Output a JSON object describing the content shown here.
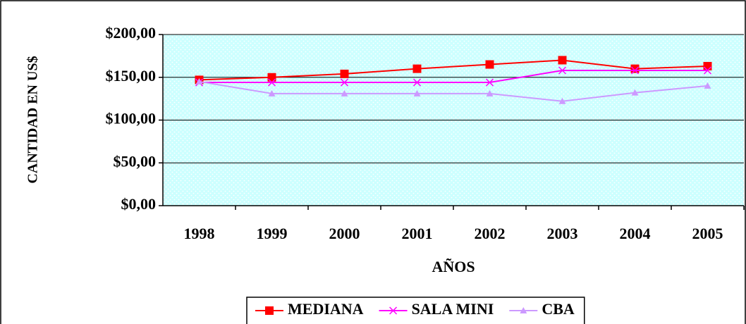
{
  "chart_data": {
    "type": "line",
    "x_label": "AÑOS",
    "y_label": "CANTIDAD EN US$",
    "categories": [
      "1998",
      "1999",
      "2000",
      "2001",
      "2002",
      "2003",
      "2004",
      "2005"
    ],
    "series": [
      {
        "name": "MEDIANA",
        "color": "#ff0000",
        "marker": "square",
        "values": [
          147,
          150,
          154,
          160,
          165,
          170,
          160,
          163
        ]
      },
      {
        "name": "SALA MINI",
        "color": "#ff00ff",
        "marker": "x",
        "values": [
          144,
          144,
          144,
          144,
          144,
          158,
          158,
          158
        ]
      },
      {
        "name": "CBA",
        "color": "#cc99ff",
        "marker": "triangle",
        "values": [
          145,
          131,
          131,
          131,
          131,
          122,
          132,
          140
        ]
      }
    ],
    "ylim": [
      0,
      200
    ],
    "yticks": [
      {
        "value": 0,
        "label": "$0,00"
      },
      {
        "value": 50,
        "label": "$50,00"
      },
      {
        "value": 100,
        "label": "$100,00"
      },
      {
        "value": 150,
        "label": "$150,00"
      },
      {
        "value": 200,
        "label": "$200,00"
      }
    ],
    "grid": true,
    "legend": "bottom"
  }
}
